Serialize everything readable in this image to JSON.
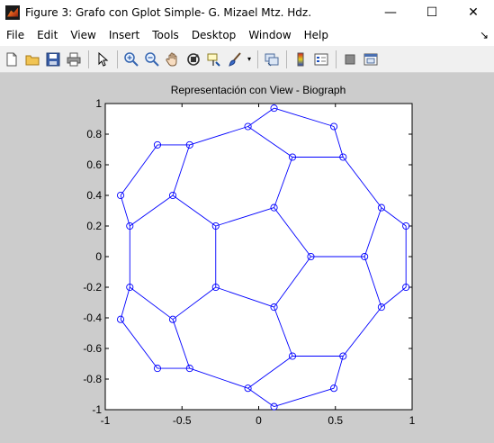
{
  "window": {
    "title": "Figure 3: Grafo con Gplot Simple- G. Mizael Mtz. Hdz.",
    "minimize_glyph": "—",
    "maximize_glyph": "☐",
    "close_glyph": "✕"
  },
  "menu": {
    "items": [
      "File",
      "Edit",
      "View",
      "Insert",
      "Tools",
      "Desktop",
      "Window",
      "Help"
    ],
    "help_arrow": "↘"
  },
  "toolbar": {
    "buttons": [
      "new-figure-icon",
      "open-file-icon",
      "save-icon",
      "print-icon",
      "pointer-icon",
      "zoom-in-icon",
      "zoom-out-icon",
      "pan-hand-icon",
      "rotate-3d-icon",
      "data-cursor-icon",
      "brush-icon",
      "link-plot-icon",
      "colorbar-icon",
      "legend-icon",
      "hide-plot-tools-icon",
      "show-plot-tools-icon"
    ]
  },
  "chart_data": {
    "type": "scatter",
    "title": "Representación con View - Biograph",
    "xlabel": "",
    "ylabel": "",
    "xlim": [
      -1,
      1
    ],
    "ylim": [
      -1,
      1
    ],
    "xticks": [
      "-1",
      "-0.5",
      "0",
      "0.5",
      "1"
    ],
    "yticks": [
      "1",
      "0.8",
      "0.6",
      "0.4",
      "0.2",
      "0",
      "-0.2",
      "-0.4",
      "-0.6",
      "-0.8",
      "-1"
    ],
    "line_color": "#0000ff",
    "marker": "circle",
    "grid": false,
    "nodes": [
      {
        "x": 0.1,
        "y": 0.97
      },
      {
        "x": -0.07,
        "y": 0.85
      },
      {
        "x": 0.49,
        "y": 0.85
      },
      {
        "x": -0.66,
        "y": 0.73
      },
      {
        "x": -0.45,
        "y": 0.73
      },
      {
        "x": 0.22,
        "y": 0.65
      },
      {
        "x": 0.55,
        "y": 0.65
      },
      {
        "x": -0.9,
        "y": 0.4
      },
      {
        "x": -0.56,
        "y": 0.4
      },
      {
        "x": 0.1,
        "y": 0.32
      },
      {
        "x": 0.8,
        "y": 0.32
      },
      {
        "x": -0.84,
        "y": 0.2
      },
      {
        "x": -0.28,
        "y": 0.2
      },
      {
        "x": 0.96,
        "y": 0.2
      },
      {
        "x": 0.34,
        "y": 0.0
      },
      {
        "x": 0.69,
        "y": 0.0
      },
      {
        "x": -0.84,
        "y": -0.2
      },
      {
        "x": -0.28,
        "y": -0.2
      },
      {
        "x": 0.96,
        "y": -0.2
      },
      {
        "x": 0.1,
        "y": -0.33
      },
      {
        "x": 0.8,
        "y": -0.33
      },
      {
        "x": -0.9,
        "y": -0.41
      },
      {
        "x": -0.56,
        "y": -0.41
      },
      {
        "x": 0.22,
        "y": -0.65
      },
      {
        "x": 0.55,
        "y": -0.65
      },
      {
        "x": -0.66,
        "y": -0.73
      },
      {
        "x": -0.45,
        "y": -0.73
      },
      {
        "x": -0.07,
        "y": -0.86
      },
      {
        "x": 0.49,
        "y": -0.86
      },
      {
        "x": 0.1,
        "y": -0.98
      }
    ],
    "edges": [
      [
        0,
        1
      ],
      [
        0,
        2
      ],
      [
        1,
        4
      ],
      [
        1,
        5
      ],
      [
        2,
        6
      ],
      [
        5,
        6
      ],
      [
        5,
        9
      ],
      [
        6,
        10
      ],
      [
        3,
        4
      ],
      [
        3,
        7
      ],
      [
        4,
        8
      ],
      [
        7,
        11
      ],
      [
        8,
        11
      ],
      [
        8,
        12
      ],
      [
        9,
        12
      ],
      [
        9,
        14
      ],
      [
        10,
        13
      ],
      [
        10,
        15
      ],
      [
        14,
        15
      ],
      [
        13,
        18
      ],
      [
        15,
        20
      ],
      [
        18,
        20
      ],
      [
        14,
        19
      ],
      [
        12,
        17
      ],
      [
        17,
        19
      ],
      [
        11,
        16
      ],
      [
        16,
        21
      ],
      [
        16,
        22
      ],
      [
        17,
        22
      ],
      [
        21,
        25
      ],
      [
        22,
        26
      ],
      [
        25,
        26
      ],
      [
        26,
        27
      ],
      [
        27,
        29
      ],
      [
        27,
        23
      ],
      [
        19,
        23
      ],
      [
        20,
        24
      ],
      [
        23,
        24
      ],
      [
        24,
        28
      ],
      [
        28,
        29
      ]
    ]
  }
}
